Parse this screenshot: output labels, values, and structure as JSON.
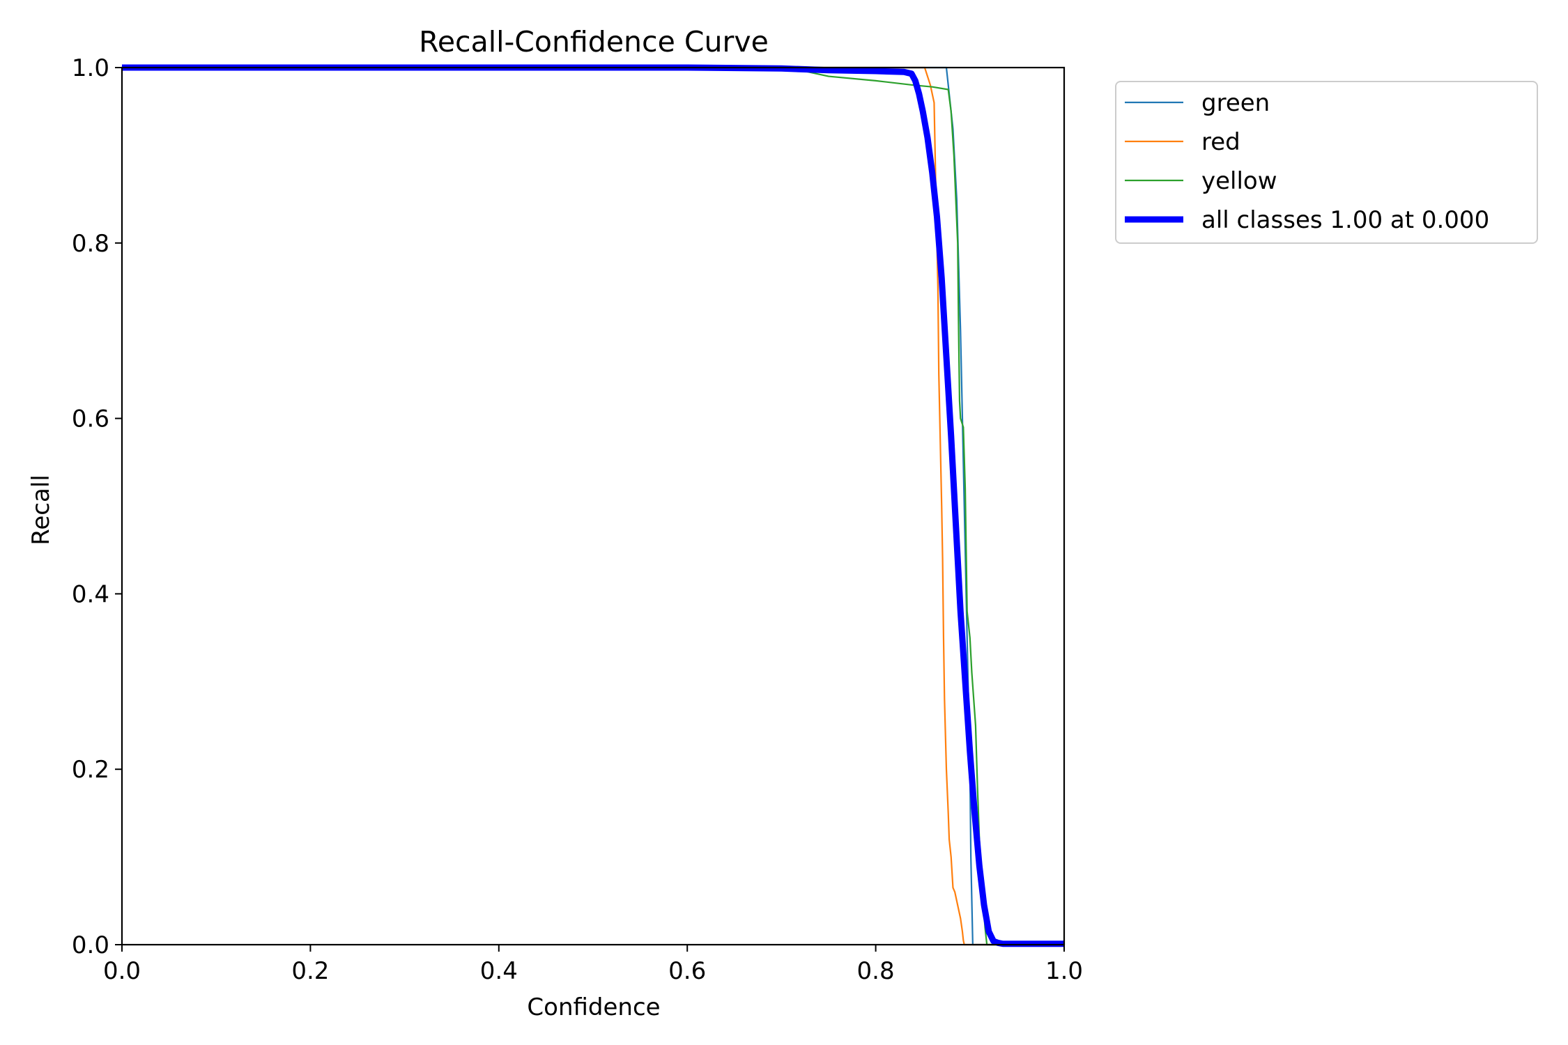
{
  "chart_data": {
    "type": "line",
    "title": "Recall-Confidence Curve",
    "xlabel": "Confidence",
    "ylabel": "Recall",
    "xlim": [
      0,
      1
    ],
    "ylim": [
      0,
      1
    ],
    "xticks": [
      "0.0",
      "0.2",
      "0.4",
      "0.6",
      "0.8",
      "1.0"
    ],
    "yticks": [
      "0.0",
      "0.2",
      "0.4",
      "0.6",
      "0.8",
      "1.0"
    ],
    "grid": false,
    "legend_position": "outside-top-right",
    "series": [
      {
        "name": "green",
        "color": "#1f77b4",
        "linewidth": "thin",
        "x": [
          0,
          0.7,
          0.875,
          0.882,
          0.886,
          0.89,
          0.893,
          0.896,
          0.898,
          0.9,
          0.901,
          0.902,
          0.903,
          1.0
        ],
        "y": [
          1,
          1,
          1,
          0.93,
          0.85,
          0.7,
          0.55,
          0.4,
          0.3,
          0.2,
          0.1,
          0.05,
          0,
          0
        ]
      },
      {
        "name": "red",
        "color": "#ff7f0e",
        "linewidth": "thin",
        "x": [
          0,
          0.8,
          0.852,
          0.858,
          0.862,
          0.864,
          0.866,
          0.867,
          0.869,
          0.87,
          0.871,
          0.872,
          0.873,
          0.875,
          0.877,
          0.878,
          0.88,
          0.882,
          0.884,
          0.887,
          0.89,
          0.892,
          0.893,
          0.894,
          1.0
        ],
        "y": [
          1,
          1,
          1,
          0.98,
          0.96,
          0.85,
          0.75,
          0.65,
          0.55,
          0.5,
          0.44,
          0.35,
          0.28,
          0.2,
          0.15,
          0.12,
          0.1,
          0.065,
          0.06,
          0.045,
          0.03,
          0.015,
          0.005,
          0,
          0
        ]
      },
      {
        "name": "yellow",
        "color": "#2ca02c",
        "linewidth": "thin",
        "x": [
          0,
          0.7,
          0.72,
          0.75,
          0.8,
          0.84,
          0.86,
          0.877,
          0.88,
          0.883,
          0.885,
          0.887,
          0.888,
          0.889,
          0.89,
          0.893,
          0.895,
          0.896,
          0.897,
          0.899,
          0.9,
          0.902,
          0.904,
          0.906,
          0.908,
          0.91,
          0.912,
          0.914,
          0.916,
          0.918,
          1.0
        ],
        "y": [
          1,
          1,
          0.997,
          0.99,
          0.985,
          0.98,
          0.978,
          0.975,
          0.95,
          0.9,
          0.85,
          0.8,
          0.7,
          0.62,
          0.6,
          0.59,
          0.52,
          0.45,
          0.38,
          0.36,
          0.35,
          0.31,
          0.28,
          0.25,
          0.18,
          0.12,
          0.08,
          0.05,
          0.02,
          0,
          0
        ]
      },
      {
        "name": "all classes 1.00 at 0.000",
        "color": "#0000ff",
        "linewidth": "thick",
        "x": [
          0,
          0.6,
          0.7,
          0.75,
          0.8,
          0.83,
          0.838,
          0.842,
          0.846,
          0.85,
          0.855,
          0.86,
          0.865,
          0.87,
          0.875,
          0.88,
          0.885,
          0.89,
          0.895,
          0.9,
          0.905,
          0.91,
          0.915,
          0.92,
          0.925,
          0.93,
          0.935,
          0.94,
          1.0
        ],
        "y": [
          1,
          1,
          0.999,
          0.997,
          0.996,
          0.995,
          0.993,
          0.985,
          0.97,
          0.95,
          0.92,
          0.88,
          0.83,
          0.76,
          0.67,
          0.58,
          0.48,
          0.38,
          0.3,
          0.22,
          0.15,
          0.09,
          0.045,
          0.015,
          0.004,
          0.002,
          0.001,
          0.001,
          0.001
        ]
      }
    ]
  }
}
